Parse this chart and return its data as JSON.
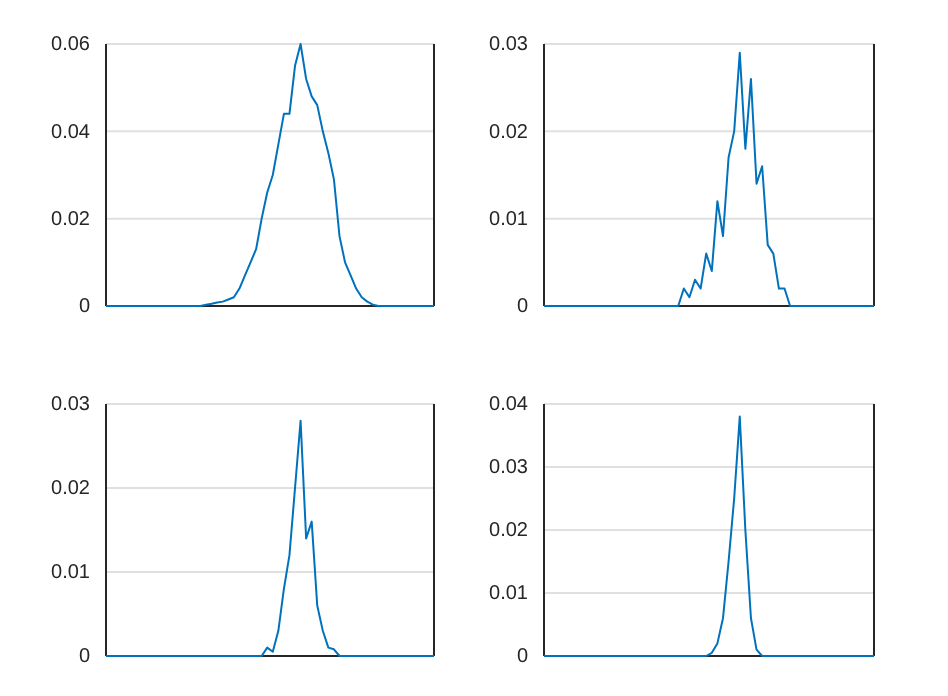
{
  "chart_data": [
    {
      "type": "line",
      "categories": [
        null,
        null,
        null,
        null,
        null,
        null,
        null,
        null,
        null,
        null,
        null,
        null,
        null,
        null,
        null,
        null,
        null,
        null,
        null,
        null,
        null,
        null,
        null,
        null,
        null,
        null,
        null,
        null,
        null,
        null,
        null,
        null,
        null,
        null,
        null,
        null,
        null,
        null,
        null,
        null,
        null,
        null,
        null,
        null,
        null,
        null,
        null,
        null,
        null,
        null,
        null,
        null,
        null,
        null,
        null,
        null,
        null,
        null,
        null,
        null
      ],
      "series": [
        {
          "color": "#0072bd",
          "values": [
            0,
            0,
            0,
            0,
            0,
            0,
            0,
            0,
            0,
            0,
            0,
            0,
            0,
            0,
            0,
            0,
            0,
            0,
            0.0003,
            0.0005,
            0.0008,
            0.001,
            0.0015,
            0.002,
            0.004,
            0.007,
            0.01,
            0.013,
            0.02,
            0.026,
            0.03,
            0.037,
            0.044,
            0.044,
            0.055,
            0.06,
            0.052,
            0.048,
            0.046,
            0.04,
            0.035,
            0.029,
            0.016,
            0.01,
            0.007,
            0.004,
            0.002,
            0.001,
            0.0003,
            0,
            0,
            0,
            0,
            0,
            0,
            0,
            0,
            0,
            0,
            0
          ]
        }
      ],
      "ylim": [
        0,
        0.06
      ],
      "yticks": [
        0,
        0.02,
        0.04,
        0.06
      ],
      "grid": "y",
      "tick_labels": "y"
    },
    {
      "type": "line",
      "categories": [
        null,
        null,
        null,
        null,
        null,
        null,
        null,
        null,
        null,
        null,
        null,
        null,
        null,
        null,
        null,
        null,
        null,
        null,
        null,
        null,
        null,
        null,
        null,
        null,
        null,
        null,
        null,
        null,
        null,
        null,
        null,
        null,
        null,
        null,
        null,
        null,
        null,
        null,
        null,
        null,
        null,
        null,
        null,
        null,
        null,
        null,
        null,
        null,
        null,
        null,
        null,
        null,
        null,
        null,
        null,
        null,
        null,
        null,
        null,
        null
      ],
      "series": [
        {
          "color": "#0072bd",
          "values": [
            0,
            0,
            0,
            0,
            0,
            0,
            0,
            0,
            0,
            0,
            0,
            0,
            0,
            0,
            0,
            0,
            0,
            0,
            0,
            0,
            0,
            0,
            0,
            0,
            0,
            0.002,
            0.001,
            0.003,
            0.002,
            0.006,
            0.004,
            0.012,
            0.008,
            0.017,
            0.02,
            0.029,
            0.018,
            0.026,
            0.014,
            0.016,
            0.007,
            0.006,
            0.002,
            0.002,
            0,
            0,
            0,
            0,
            0,
            0,
            0,
            0,
            0,
            0,
            0,
            0,
            0,
            0,
            0,
            0
          ]
        }
      ],
      "ylim": [
        0,
        0.03
      ],
      "yticks": [
        0,
        0.01,
        0.02,
        0.03
      ],
      "grid": "y",
      "tick_labels": "y"
    },
    {
      "type": "line",
      "categories": [
        null,
        null,
        null,
        null,
        null,
        null,
        null,
        null,
        null,
        null,
        null,
        null,
        null,
        null,
        null,
        null,
        null,
        null,
        null,
        null,
        null,
        null,
        null,
        null,
        null,
        null,
        null,
        null,
        null,
        null,
        null,
        null,
        null,
        null,
        null,
        null,
        null,
        null,
        null,
        null,
        null,
        null,
        null,
        null,
        null,
        null,
        null,
        null,
        null,
        null,
        null,
        null,
        null,
        null,
        null,
        null,
        null,
        null,
        null,
        null
      ],
      "series": [
        {
          "color": "#0072bd",
          "values": [
            0,
            0,
            0,
            0,
            0,
            0,
            0,
            0,
            0,
            0,
            0,
            0,
            0,
            0,
            0,
            0,
            0,
            0,
            0,
            0,
            0,
            0,
            0,
            0,
            0,
            0,
            0,
            0,
            0,
            0.001,
            0.0005,
            0.003,
            0.008,
            0.012,
            0.02,
            0.028,
            0.014,
            0.016,
            0.006,
            0.003,
            0.001,
            0.0008,
            0,
            0,
            0,
            0,
            0,
            0,
            0,
            0,
            0,
            0,
            0,
            0,
            0,
            0,
            0,
            0,
            0,
            0
          ]
        }
      ],
      "ylim": [
        0,
        0.03
      ],
      "yticks": [
        0,
        0.01,
        0.02,
        0.03
      ],
      "grid": "y",
      "tick_labels": "y"
    },
    {
      "type": "line",
      "categories": [
        null,
        null,
        null,
        null,
        null,
        null,
        null,
        null,
        null,
        null,
        null,
        null,
        null,
        null,
        null,
        null,
        null,
        null,
        null,
        null,
        null,
        null,
        null,
        null,
        null,
        null,
        null,
        null,
        null,
        null,
        null,
        null,
        null,
        null,
        null,
        null,
        null,
        null,
        null,
        null,
        null,
        null,
        null,
        null,
        null,
        null,
        null,
        null,
        null,
        null,
        null,
        null,
        null,
        null,
        null,
        null,
        null,
        null,
        null,
        null
      ],
      "series": [
        {
          "color": "#0072bd",
          "values": [
            0,
            0,
            0,
            0,
            0,
            0,
            0,
            0,
            0,
            0,
            0,
            0,
            0,
            0,
            0,
            0,
            0,
            0,
            0,
            0,
            0,
            0,
            0,
            0,
            0,
            0,
            0,
            0,
            0,
            0,
            0.0005,
            0.002,
            0.006,
            0.015,
            0.025,
            0.038,
            0.02,
            0.006,
            0.001,
            0,
            0,
            0,
            0,
            0,
            0,
            0,
            0,
            0,
            0,
            0,
            0,
            0,
            0,
            0,
            0,
            0,
            0,
            0,
            0,
            0
          ]
        }
      ],
      "ylim": [
        0,
        0.04
      ],
      "yticks": [
        0,
        0.01,
        0.02,
        0.03,
        0.04
      ],
      "grid": "y",
      "tick_labels": "y"
    }
  ]
}
